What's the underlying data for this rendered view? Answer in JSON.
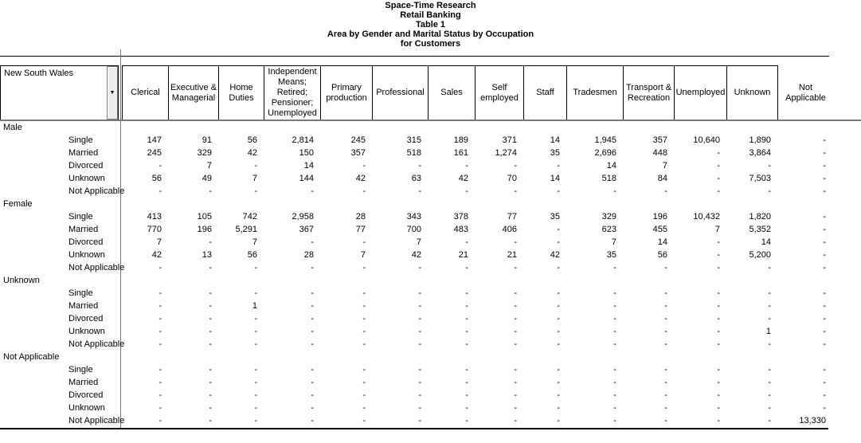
{
  "titles": [
    "Space-Time Research",
    "Retail Banking",
    "Table 1",
    "Area by Gender and Marital Status by Occupation",
    "for Customers"
  ],
  "icons": {
    "dropdown": "▼"
  },
  "colors": {
    "text": "#000000",
    "grid_black": "#000000",
    "grid_gray": "#787878",
    "button_face": "#ececec",
    "background": "#ffffff"
  },
  "table": {
    "row_dimension_label": "New South Wales",
    "columns": [
      "Clerical",
      "Executive &\nManagerial",
      "Home\nDuties",
      "Independent\nMeans;\nRetired;\nPensioner;\nUnemployed",
      "Primary\nproduction",
      "Professional",
      "Sales",
      "Self\nemployed",
      "Staff",
      "Tradesmen",
      "Transport &\nRecreation",
      "Unemployed",
      "Unknown",
      "Not\nApplicable"
    ],
    "row_groups": [
      {
        "label": "Male",
        "rows": [
          {
            "label": "Single",
            "values": [
              "147",
              "91",
              "56",
              "2,814",
              "245",
              "315",
              "189",
              "371",
              "14",
              "1,945",
              "357",
              "10,640",
              "1,890",
              "-"
            ]
          },
          {
            "label": "Married",
            "values": [
              "245",
              "329",
              "42",
              "150",
              "357",
              "518",
              "161",
              "1,274",
              "35",
              "2,696",
              "448",
              "-",
              "3,864",
              "-"
            ]
          },
          {
            "label": "Divorced",
            "values": [
              "-",
              "7",
              "-",
              "14",
              "-",
              "-",
              "-",
              "-",
              "-",
              "14",
              "7",
              "-",
              "-",
              "-"
            ]
          },
          {
            "label": "Unknown",
            "values": [
              "56",
              "49",
              "7",
              "144",
              "42",
              "63",
              "42",
              "70",
              "14",
              "518",
              "84",
              "-",
              "7,503",
              "-"
            ]
          },
          {
            "label": "Not Applicable",
            "values": [
              "-",
              "-",
              "-",
              "-",
              "-",
              "-",
              "-",
              "-",
              "-",
              "-",
              "-",
              "-",
              "-",
              "-"
            ]
          }
        ]
      },
      {
        "label": "Female",
        "rows": [
          {
            "label": "Single",
            "values": [
              "413",
              "105",
              "742",
              "2,958",
              "28",
              "343",
              "378",
              "77",
              "35",
              "329",
              "196",
              "10,432",
              "1,820",
              "-"
            ]
          },
          {
            "label": "Married",
            "values": [
              "770",
              "196",
              "5,291",
              "367",
              "77",
              "700",
              "483",
              "406",
              "-",
              "623",
              "455",
              "7",
              "5,352",
              "-"
            ]
          },
          {
            "label": "Divorced",
            "values": [
              "7",
              "-",
              "7",
              "-",
              "-",
              "7",
              "-",
              "-",
              "-",
              "7",
              "14",
              "-",
              "14",
              "-"
            ]
          },
          {
            "label": "Unknown",
            "values": [
              "42",
              "13",
              "56",
              "28",
              "7",
              "42",
              "21",
              "21",
              "42",
              "35",
              "56",
              "-",
              "5,200",
              "-"
            ]
          },
          {
            "label": "Not Applicable",
            "values": [
              "-",
              "-",
              "-",
              "-",
              "-",
              "-",
              "-",
              "-",
              "-",
              "-",
              "-",
              "-",
              "-",
              "-"
            ]
          }
        ]
      },
      {
        "label": "Unknown",
        "rows": [
          {
            "label": "Single",
            "values": [
              "-",
              "-",
              "-",
              "-",
              "-",
              "-",
              "-",
              "-",
              "-",
              "-",
              "-",
              "-",
              "-",
              "-"
            ]
          },
          {
            "label": "Married",
            "values": [
              "-",
              "-",
              "1",
              "-",
              "-",
              "-",
              "-",
              "-",
              "-",
              "-",
              "-",
              "-",
              "-",
              "-"
            ]
          },
          {
            "label": "Divorced",
            "values": [
              "-",
              "-",
              "-",
              "-",
              "-",
              "-",
              "-",
              "-",
              "-",
              "-",
              "-",
              "-",
              "-",
              "-"
            ]
          },
          {
            "label": "Unknown",
            "values": [
              "-",
              "-",
              "-",
              "-",
              "-",
              "-",
              "-",
              "-",
              "-",
              "-",
              "-",
              "-",
              "1",
              "-"
            ]
          },
          {
            "label": "Not Applicable",
            "values": [
              "-",
              "-",
              "-",
              "-",
              "-",
              "-",
              "-",
              "-",
              "-",
              "-",
              "-",
              "-",
              "-",
              "-"
            ]
          }
        ]
      },
      {
        "label": "Not Applicable",
        "rows": [
          {
            "label": "Single",
            "values": [
              "-",
              "-",
              "-",
              "-",
              "-",
              "-",
              "-",
              "-",
              "-",
              "-",
              "-",
              "-",
              "-",
              "-"
            ]
          },
          {
            "label": "Married",
            "values": [
              "-",
              "-",
              "-",
              "-",
              "-",
              "-",
              "-",
              "-",
              "-",
              "-",
              "-",
              "-",
              "-",
              "-"
            ]
          },
          {
            "label": "Divorced",
            "values": [
              "-",
              "-",
              "-",
              "-",
              "-",
              "-",
              "-",
              "-",
              "-",
              "-",
              "-",
              "-",
              "-",
              "-"
            ]
          },
          {
            "label": "Unknown",
            "values": [
              "-",
              "-",
              "-",
              "-",
              "-",
              "-",
              "-",
              "-",
              "-",
              "-",
              "-",
              "-",
              "-",
              "-"
            ]
          },
          {
            "label": "Not Applicable",
            "values": [
              "-",
              "-",
              "-",
              "-",
              "-",
              "-",
              "-",
              "-",
              "-",
              "-",
              "-",
              "-",
              "-",
              "13,330"
            ]
          }
        ]
      }
    ]
  }
}
